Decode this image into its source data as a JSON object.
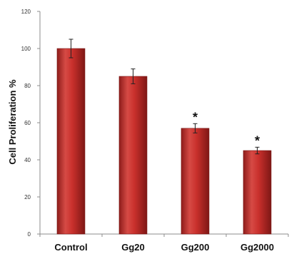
{
  "chart_data": {
    "type": "bar",
    "categories": [
      "Control",
      "Gg20",
      "Gg200",
      "Gg2000"
    ],
    "values": [
      100,
      85,
      57,
      45
    ],
    "errors": [
      5,
      4,
      2.5,
      1.8
    ],
    "annotations": [
      "",
      "",
      "*",
      "*"
    ],
    "ylabel": "Cell Proliferation %",
    "xlabel": "",
    "title": "",
    "ylim": [
      0,
      120
    ],
    "yticks": [
      "0",
      "20",
      "40",
      "60",
      "80",
      "100",
      "120"
    ],
    "grid": false,
    "legend": "none",
    "bar_color": "#c9302c"
  }
}
